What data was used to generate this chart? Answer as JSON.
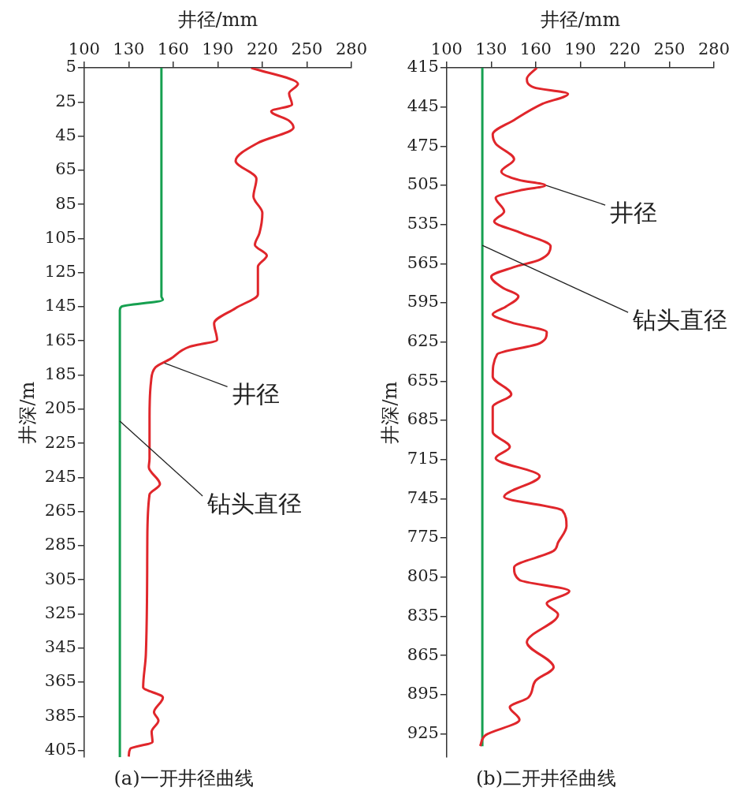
{
  "chart_data": [
    {
      "type": "line",
      "title": "(a)一开井径曲线",
      "xlabel": "井径/mm",
      "ylabel": "井深/m",
      "xlim": [
        100,
        280
      ],
      "xticks": [
        100,
        130,
        160,
        190,
        220,
        250,
        280
      ],
      "ylim": [
        409,
        5
      ],
      "yticks": [
        5,
        25,
        45,
        65,
        85,
        105,
        125,
        145,
        165,
        185,
        205,
        225,
        245,
        265,
        285,
        305,
        325,
        345,
        365,
        385,
        405
      ],
      "grid": false,
      "legend": false,
      "marker": "none",
      "line_style": "solid",
      "series": [
        {
          "color": "#e0262b",
          "x": [
            212.5,
            244,
            238,
            240,
            226,
            238,
            241,
            217,
            202,
            216,
            214,
            220,
            218,
            215,
            223,
            217,
            217,
            202,
            187.5,
            189.5,
            171,
            158,
            148,
            145,
            144,
            144,
            143.5,
            151,
            144,
            142.5,
            141.5,
            139.7,
            153,
            147,
            150,
            145.4,
            146,
            131,
            130
          ],
          "values": [
            5,
            14.4,
            20,
            26.5,
            30.5,
            36,
            40,
            49,
            59.5,
            70,
            80.5,
            90,
            102,
            108.7,
            115,
            121.6,
            137.7,
            145.8,
            154.7,
            164.4,
            168.4,
            175.6,
            180.5,
            189,
            210,
            234,
            239,
            249,
            255,
            283,
            349,
            368,
            374,
            382.6,
            387.5,
            394,
            400,
            404,
            408.6
          ]
        },
        {
          "color": "#16a050",
          "x": [
            152,
            152,
            153,
            125,
            124,
            124
          ],
          "values": [
            5,
            139,
            141,
            145,
            147,
            409
          ]
        }
      ],
      "annotations": [
        {
          "text": "井径",
          "x": 154,
          "y": 178
        },
        {
          "text": "钻头直径",
          "x": 124,
          "y": 212
        }
      ]
    },
    {
      "type": "line",
      "title": "(b)二开井径曲线",
      "xlabel": "井径/mm",
      "ylabel": "井深/m",
      "xlim": [
        100,
        280
      ],
      "xticks": [
        100,
        130,
        160,
        190,
        220,
        250,
        280
      ],
      "ylim": [
        943,
        415
      ],
      "yticks": [
        415,
        445,
        475,
        505,
        535,
        565,
        595,
        625,
        655,
        685,
        715,
        745,
        775,
        805,
        835,
        865,
        895,
        925
      ],
      "grid": false,
      "legend": false,
      "marker": "none",
      "line_style": "solid",
      "series": [
        {
          "color": "#e0262b",
          "x": [
            160.7,
            154,
            158.8,
            181.7,
            164.5,
            145.4,
            131,
            133,
            145.4,
            136.8,
            149,
            166.4,
            149,
            133,
            138.7,
            132,
            149,
            170,
            162.6,
            145.4,
            130,
            137.8,
            148.3,
            139.7,
            131,
            143.5,
            167.4,
            162.6,
            134,
            131,
            143.5,
            131,
            131,
            142.5,
            133,
            162.6,
            138.7,
            177.9,
            180.7,
            175,
            172,
            145.4,
            149,
            182.6,
            167.4,
            175,
            154,
            172,
            159.7,
            155,
            142.5,
            149,
            126.3,
            122.5
          ],
          "values": [
            415,
            423.5,
            430,
            435,
            442.6,
            455,
            466,
            473,
            485,
            494.5,
            501,
            505,
            509,
            514.6,
            525,
            532.7,
            541,
            551.7,
            562,
            567.6,
            575,
            583.5,
            590,
            598,
            603.7,
            610,
            617.5,
            626,
            634.4,
            651.4,
            665,
            674.7,
            693.8,
            705.4,
            714,
            727.7,
            743.6,
            754,
            765.9,
            778.6,
            785,
            797.7,
            807.2,
            815.7,
            825.2,
            833.7,
            854.9,
            874,
            884.6,
            897.3,
            904.7,
            914.3,
            926,
            934.4
          ]
        },
        {
          "color": "#16a050",
          "x": [
            124,
            124
          ],
          "values": [
            415,
            934.6
          ]
        }
      ],
      "annotations": [
        {
          "text": "井径",
          "x": 167,
          "y": 505
        },
        {
          "text": "钻头直径",
          "x": 124,
          "y": 551
        }
      ]
    }
  ]
}
